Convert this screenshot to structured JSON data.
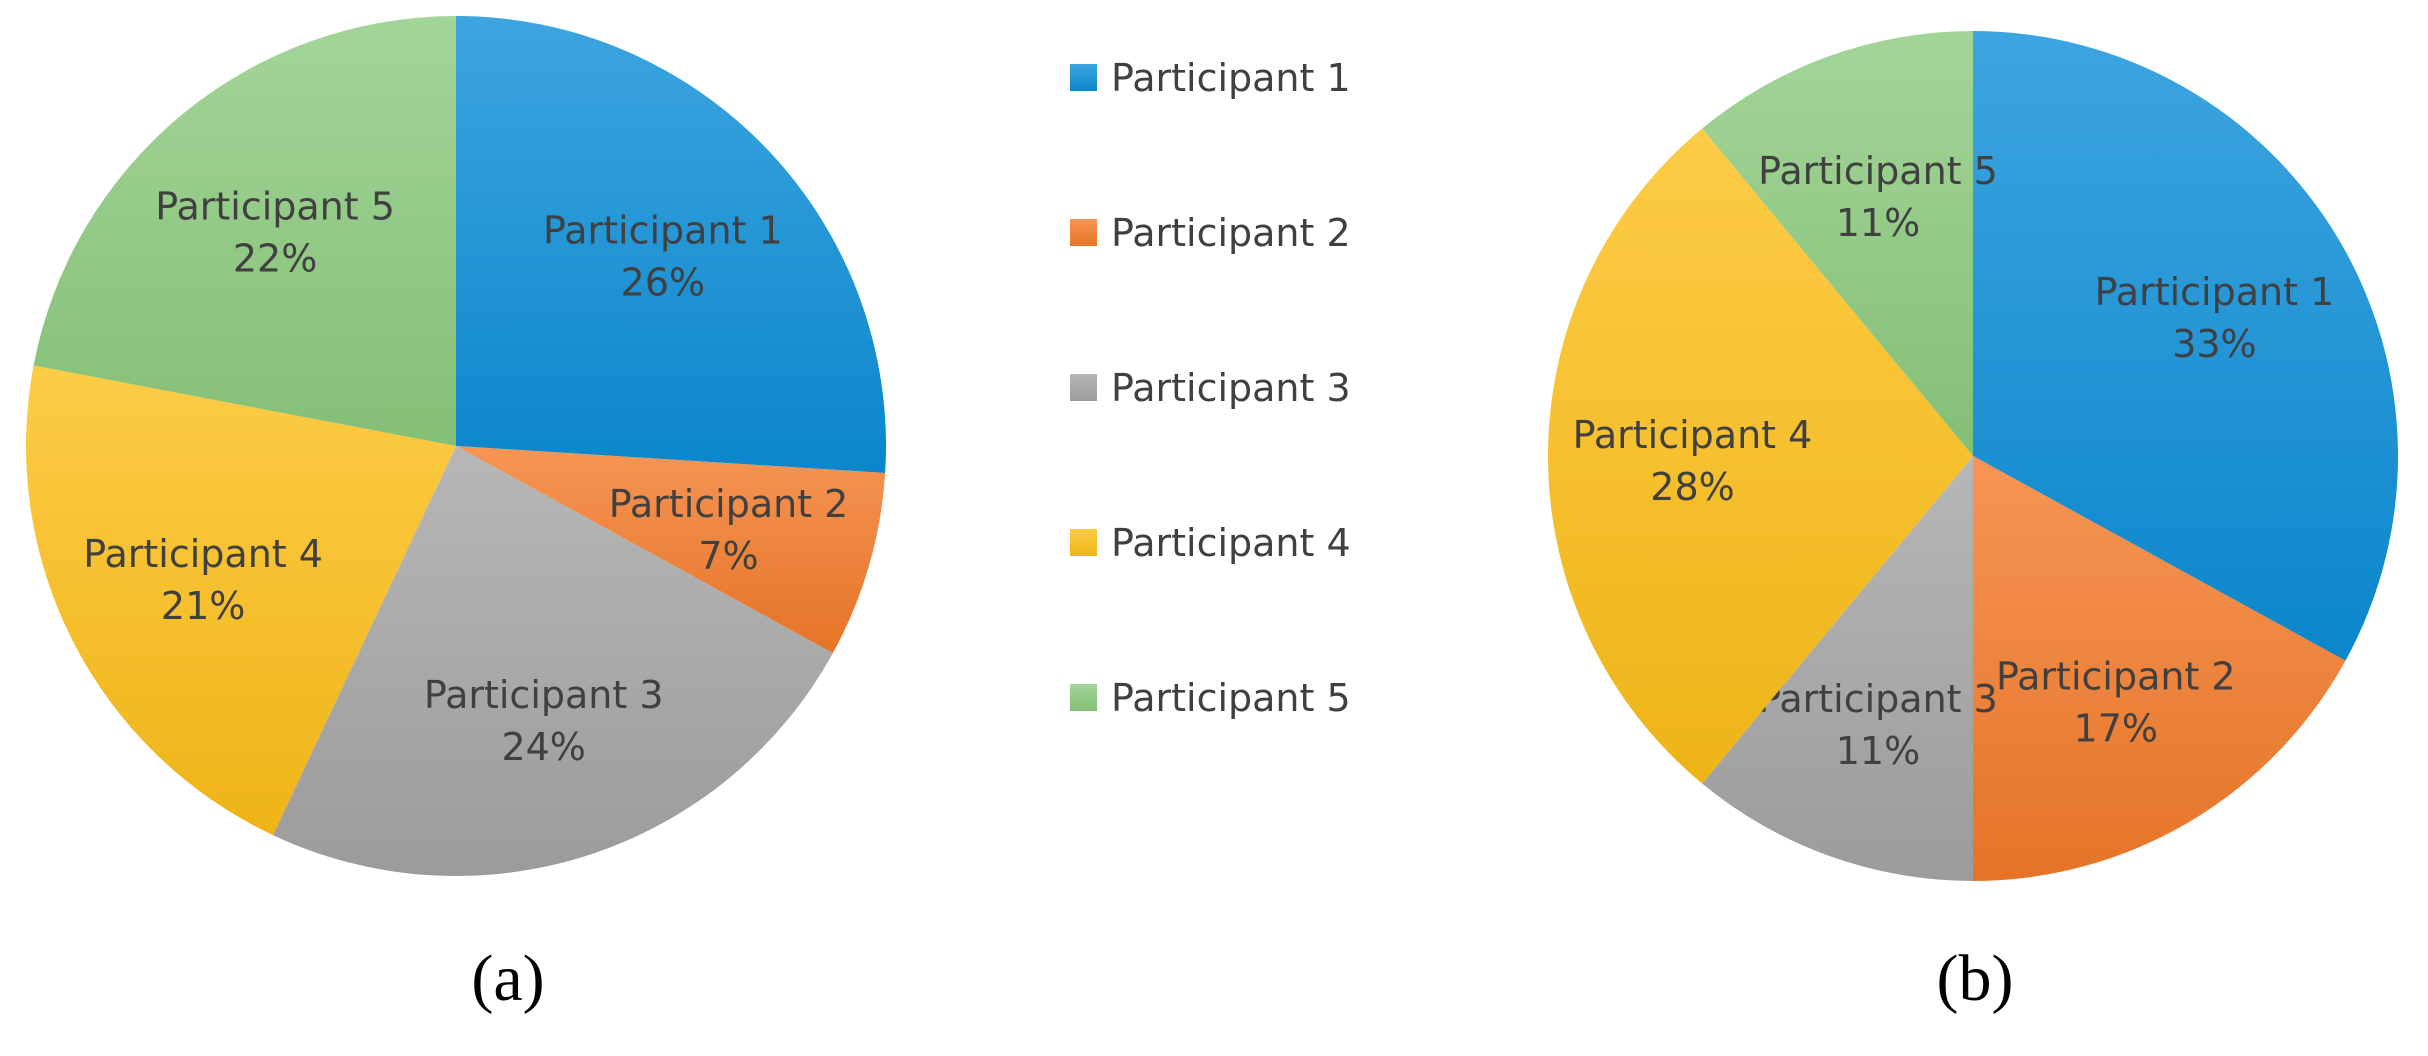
{
  "legend": {
    "placement": "center",
    "items": [
      {
        "name": "Participant 1",
        "color": "#0C8FD8"
      },
      {
        "name": "Participant 2",
        "color": "#F47B2A"
      },
      {
        "name": "Participant 3",
        "color": "#A5A5A5"
      },
      {
        "name": "Participant 4",
        "color": "#FDBF18"
      },
      {
        "name": "Participant 5",
        "color": "#8CCB7E"
      }
    ]
  },
  "chart_data": [
    {
      "type": "pie",
      "panel_label": "(a)",
      "categories": [
        "Participant 1",
        "Participant 2",
        "Participant 3",
        "Participant 4",
        "Participant 5"
      ],
      "values": [
        26,
        7,
        24,
        21,
        22
      ],
      "value_labels": [
        "26%",
        "7%",
        "24%",
        "21%",
        "22%"
      ],
      "colors": [
        "#0C8FD8",
        "#F47B2A",
        "#A5A5A5",
        "#FDBF18",
        "#8CCB7E"
      ]
    },
    {
      "type": "pie",
      "panel_label": "(b)",
      "categories": [
        "Participant 1",
        "Participant 2",
        "Participant 3",
        "Participant 4",
        "Participant 5"
      ],
      "values": [
        33,
        17,
        11,
        28,
        11
      ],
      "value_labels": [
        "33%",
        "17%",
        "11%",
        "28%",
        "11%"
      ],
      "colors": [
        "#0C8FD8",
        "#F47B2A",
        "#A5A5A5",
        "#FDBF18",
        "#8CCB7E"
      ]
    }
  ]
}
